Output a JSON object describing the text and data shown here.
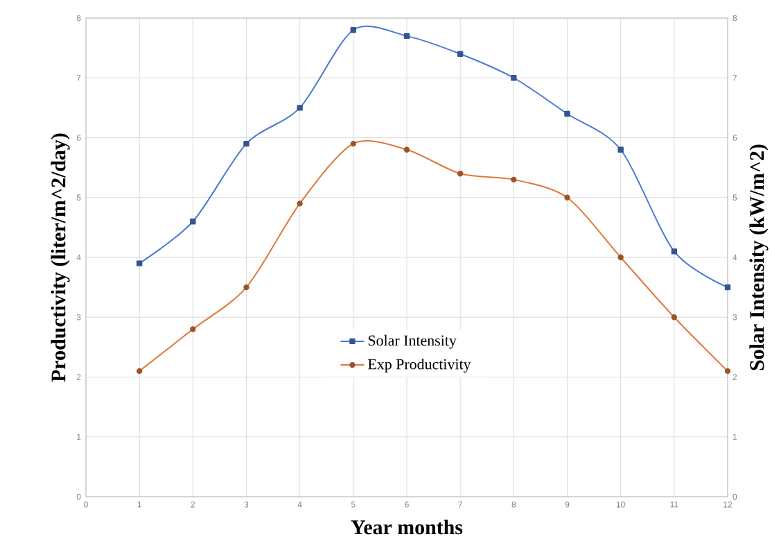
{
  "chart_data": {
    "type": "line",
    "xlabel": "Year months",
    "ylabel": "Productivity (liter/m^2/day)",
    "y2label": "Solar Intensity (kW/m^2)",
    "x": [
      1,
      2,
      3,
      4,
      5,
      6,
      7,
      8,
      9,
      10,
      11,
      12
    ],
    "xlim": [
      0,
      12
    ],
    "xticks": [
      0,
      1,
      2,
      3,
      4,
      5,
      6,
      7,
      8,
      9,
      10,
      11,
      12
    ],
    "ylim": [
      0,
      8
    ],
    "yticks": [
      0,
      1,
      2,
      3,
      4,
      5,
      6,
      7,
      8
    ],
    "y2lim": [
      0,
      8
    ],
    "y2ticks": [
      0,
      1,
      2,
      3,
      4,
      5,
      6,
      7,
      8
    ],
    "grid": true,
    "legend": "center",
    "line_style": "solid",
    "series": [
      {
        "name": "Solar Intensity",
        "color": "#4a78d0",
        "axis": "y2",
        "marker": "square",
        "values": [
          3.9,
          4.6,
          5.9,
          6.5,
          7.8,
          7.7,
          7.4,
          7.0,
          6.4,
          5.8,
          4.1,
          3.5
        ]
      },
      {
        "name": "Exp Productivity",
        "color": "#e0783a",
        "marker": "circle",
        "values": [
          2.1,
          2.8,
          3.5,
          4.9,
          5.9,
          5.8,
          5.4,
          5.3,
          5.0,
          4.0,
          3.0,
          2.1
        ]
      }
    ]
  }
}
